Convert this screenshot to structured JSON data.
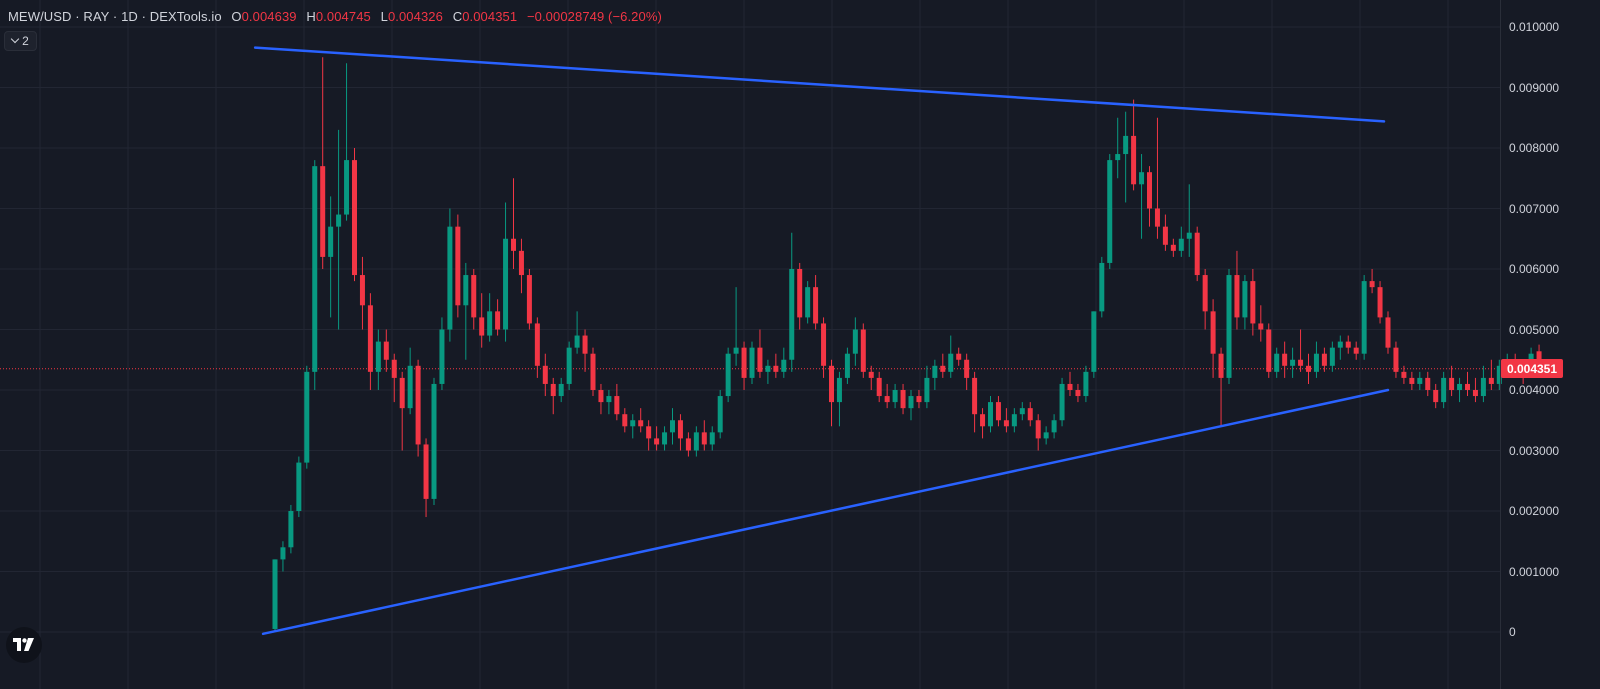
{
  "legend": {
    "symbol": "MEW/USD · RAY · 1D · DEXTools.io",
    "open_label": "O",
    "open": "0.004639",
    "high_label": "H",
    "high": "0.004745",
    "low_label": "L",
    "low": "0.004326",
    "close_label": "C",
    "close": "0.004351",
    "change": "−0.00028749 (−6.20%)"
  },
  "indicators_toggle": {
    "count": "2",
    "icon": "chevron-down-icon"
  },
  "price_axis": {
    "ticks": [
      "0.010000",
      "0.009000",
      "0.008000",
      "0.007000",
      "0.006000",
      "0.005000",
      "0.004000",
      "0.003000",
      "0.002000",
      "0.001000",
      "0"
    ],
    "last_price": "0.004351"
  },
  "logo": "tradingview-logo-icon",
  "colors": {
    "background": "#161a25",
    "grid": "#222633",
    "up": "#089981",
    "down": "#f23645",
    "trendline": "#2962ff",
    "last_price_line": "#f23645"
  },
  "chart_data": {
    "type": "candlestick",
    "title": "MEW/USD · RAY · 1D · DEXTools.io",
    "ylim": [
      -0.0006,
      0.0104
    ],
    "grid": true,
    "y_ticks": [
      0,
      0.001,
      0.002,
      0.003,
      0.004,
      0.005,
      0.006,
      0.007,
      0.008,
      0.009,
      0.01
    ],
    "last_price": 0.004351,
    "candles": [
      [
        5e-05,
        0.0012,
        0.0,
        0.0012
      ],
      [
        0.0012,
        0.0015,
        0.001,
        0.0014
      ],
      [
        0.0014,
        0.0021,
        0.0013,
        0.002
      ],
      [
        0.002,
        0.0029,
        0.0019,
        0.0028
      ],
      [
        0.0028,
        0.0044,
        0.0027,
        0.0043
      ],
      [
        0.0043,
        0.0078,
        0.004,
        0.0077
      ],
      [
        0.0077,
        0.0095,
        0.006,
        0.0062
      ],
      [
        0.0062,
        0.0072,
        0.0052,
        0.0067
      ],
      [
        0.0067,
        0.0083,
        0.005,
        0.0069
      ],
      [
        0.0069,
        0.0094,
        0.0068,
        0.0078
      ],
      [
        0.0078,
        0.008,
        0.0058,
        0.0059
      ],
      [
        0.0059,
        0.0062,
        0.005,
        0.0054
      ],
      [
        0.0054,
        0.0056,
        0.004,
        0.0043
      ],
      [
        0.0043,
        0.005,
        0.004,
        0.0048
      ],
      [
        0.0048,
        0.005,
        0.0043,
        0.0045
      ],
      [
        0.0045,
        0.0046,
        0.0038,
        0.0042
      ],
      [
        0.0042,
        0.0043,
        0.003,
        0.0037
      ],
      [
        0.0037,
        0.0047,
        0.0036,
        0.0044
      ],
      [
        0.0044,
        0.0045,
        0.0029,
        0.0031
      ],
      [
        0.0031,
        0.0032,
        0.0019,
        0.0022
      ],
      [
        0.0022,
        0.0042,
        0.0021,
        0.0041
      ],
      [
        0.0041,
        0.0052,
        0.004,
        0.005
      ],
      [
        0.005,
        0.007,
        0.0048,
        0.0067
      ],
      [
        0.0067,
        0.0069,
        0.0052,
        0.0054
      ],
      [
        0.0054,
        0.0061,
        0.0045,
        0.0059
      ],
      [
        0.0059,
        0.006,
        0.005,
        0.0052
      ],
      [
        0.0052,
        0.0056,
        0.0047,
        0.0049
      ],
      [
        0.0049,
        0.0056,
        0.0048,
        0.0053
      ],
      [
        0.0053,
        0.0055,
        0.0049,
        0.005
      ],
      [
        0.005,
        0.0071,
        0.0048,
        0.0065
      ],
      [
        0.0065,
        0.0075,
        0.006,
        0.0063
      ],
      [
        0.0063,
        0.0065,
        0.0056,
        0.0059
      ],
      [
        0.0059,
        0.006,
        0.005,
        0.0051
      ],
      [
        0.0051,
        0.0052,
        0.0042,
        0.0044
      ],
      [
        0.0044,
        0.0046,
        0.0039,
        0.0041
      ],
      [
        0.0041,
        0.0042,
        0.0036,
        0.0039
      ],
      [
        0.0039,
        0.0042,
        0.0038,
        0.0041
      ],
      [
        0.0041,
        0.0048,
        0.004,
        0.0047
      ],
      [
        0.0047,
        0.0053,
        0.0046,
        0.0049
      ],
      [
        0.0049,
        0.005,
        0.0043,
        0.0046
      ],
      [
        0.0046,
        0.0047,
        0.0039,
        0.004
      ],
      [
        0.004,
        0.0041,
        0.0036,
        0.0038
      ],
      [
        0.0038,
        0.004,
        0.0036,
        0.0039
      ],
      [
        0.0039,
        0.0041,
        0.0035,
        0.0036
      ],
      [
        0.0036,
        0.0037,
        0.0033,
        0.0034
      ],
      [
        0.0034,
        0.0036,
        0.0032,
        0.0035
      ],
      [
        0.0035,
        0.0037,
        0.0033,
        0.0034
      ],
      [
        0.0034,
        0.0035,
        0.003,
        0.0032
      ],
      [
        0.0032,
        0.0034,
        0.003,
        0.0031
      ],
      [
        0.0031,
        0.0034,
        0.003,
        0.0033
      ],
      [
        0.0033,
        0.0037,
        0.0031,
        0.0035
      ],
      [
        0.0035,
        0.0036,
        0.003,
        0.0032
      ],
      [
        0.0032,
        0.0033,
        0.0029,
        0.003
      ],
      [
        0.003,
        0.0034,
        0.0029,
        0.0033
      ],
      [
        0.0033,
        0.0035,
        0.003,
        0.0031
      ],
      [
        0.0031,
        0.0034,
        0.003,
        0.0033
      ],
      [
        0.0033,
        0.004,
        0.0032,
        0.0039
      ],
      [
        0.0039,
        0.0047,
        0.0038,
        0.0046
      ],
      [
        0.0046,
        0.0057,
        0.0044,
        0.0047
      ],
      [
        0.0047,
        0.0048,
        0.004,
        0.0042
      ],
      [
        0.0042,
        0.0048,
        0.0041,
        0.0047
      ],
      [
        0.0047,
        0.005,
        0.0042,
        0.0043
      ],
      [
        0.0043,
        0.0045,
        0.0041,
        0.0044
      ],
      [
        0.0044,
        0.0046,
        0.0042,
        0.0043
      ],
      [
        0.0043,
        0.0047,
        0.0042,
        0.0045
      ],
      [
        0.0045,
        0.0066,
        0.0043,
        0.006
      ],
      [
        0.006,
        0.0061,
        0.005,
        0.0052
      ],
      [
        0.0052,
        0.0058,
        0.0051,
        0.0057
      ],
      [
        0.0057,
        0.0059,
        0.005,
        0.0051
      ],
      [
        0.0051,
        0.0052,
        0.0042,
        0.0044
      ],
      [
        0.0044,
        0.0045,
        0.0034,
        0.0038
      ],
      [
        0.0038,
        0.0043,
        0.0034,
        0.0042
      ],
      [
        0.0042,
        0.0047,
        0.0041,
        0.0046
      ],
      [
        0.0046,
        0.0052,
        0.0044,
        0.005
      ],
      [
        0.005,
        0.0051,
        0.0042,
        0.0043
      ],
      [
        0.0043,
        0.0044,
        0.004,
        0.0042
      ],
      [
        0.0042,
        0.0043,
        0.0038,
        0.0039
      ],
      [
        0.0039,
        0.0041,
        0.0037,
        0.0038
      ],
      [
        0.0038,
        0.0041,
        0.0037,
        0.004
      ],
      [
        0.004,
        0.0041,
        0.0036,
        0.0037
      ],
      [
        0.0037,
        0.004,
        0.0035,
        0.0039
      ],
      [
        0.0039,
        0.004,
        0.0037,
        0.0038
      ],
      [
        0.0038,
        0.0044,
        0.0037,
        0.0042
      ],
      [
        0.0042,
        0.0045,
        0.004,
        0.0044
      ],
      [
        0.0044,
        0.0046,
        0.0042,
        0.0043
      ],
      [
        0.0043,
        0.0049,
        0.0042,
        0.0046
      ],
      [
        0.0046,
        0.0047,
        0.0044,
        0.0045
      ],
      [
        0.0045,
        0.0046,
        0.004,
        0.0042
      ],
      [
        0.0042,
        0.0043,
        0.0033,
        0.0036
      ],
      [
        0.0036,
        0.0037,
        0.0032,
        0.0034
      ],
      [
        0.0034,
        0.0039,
        0.0033,
        0.0038
      ],
      [
        0.0038,
        0.0039,
        0.0034,
        0.0035
      ],
      [
        0.0035,
        0.0037,
        0.0033,
        0.0034
      ],
      [
        0.0034,
        0.0037,
        0.0033,
        0.0036
      ],
      [
        0.0036,
        0.0038,
        0.0035,
        0.0037
      ],
      [
        0.0037,
        0.0038,
        0.0034,
        0.0035
      ],
      [
        0.0035,
        0.0036,
        0.003,
        0.0032
      ],
      [
        0.0032,
        0.0034,
        0.0031,
        0.0033
      ],
      [
        0.0033,
        0.0036,
        0.0032,
        0.0035
      ],
      [
        0.0035,
        0.0042,
        0.0034,
        0.0041
      ],
      [
        0.0041,
        0.0043,
        0.0039,
        0.004
      ],
      [
        0.004,
        0.0041,
        0.0038,
        0.0039
      ],
      [
        0.0039,
        0.0044,
        0.0038,
        0.0043
      ],
      [
        0.0043,
        0.0053,
        0.0042,
        0.0053
      ],
      [
        0.0053,
        0.0062,
        0.0052,
        0.0061
      ],
      [
        0.0061,
        0.0079,
        0.006,
        0.0078
      ],
      [
        0.0078,
        0.0085,
        0.0075,
        0.0079
      ],
      [
        0.0079,
        0.0086,
        0.0071,
        0.0082
      ],
      [
        0.0082,
        0.0088,
        0.0073,
        0.0074
      ],
      [
        0.0074,
        0.0079,
        0.0065,
        0.0076
      ],
      [
        0.0076,
        0.0077,
        0.0067,
        0.007
      ],
      [
        0.007,
        0.0085,
        0.0065,
        0.0067
      ],
      [
        0.0067,
        0.0069,
        0.0063,
        0.0064
      ],
      [
        0.0064,
        0.0065,
        0.0062,
        0.0063
      ],
      [
        0.0063,
        0.0067,
        0.0062,
        0.0065
      ],
      [
        0.0065,
        0.0074,
        0.0062,
        0.0066
      ],
      [
        0.0066,
        0.0067,
        0.0058,
        0.0059
      ],
      [
        0.0059,
        0.006,
        0.005,
        0.0053
      ],
      [
        0.0053,
        0.0055,
        0.0042,
        0.0046
      ],
      [
        0.0046,
        0.0047,
        0.0034,
        0.0042
      ],
      [
        0.0042,
        0.006,
        0.0041,
        0.0059
      ],
      [
        0.0059,
        0.0063,
        0.005,
        0.0052
      ],
      [
        0.0052,
        0.0059,
        0.005,
        0.0058
      ],
      [
        0.0058,
        0.006,
        0.0049,
        0.0051
      ],
      [
        0.0051,
        0.0054,
        0.0048,
        0.005
      ],
      [
        0.005,
        0.0051,
        0.0042,
        0.0043
      ],
      [
        0.0043,
        0.0047,
        0.0042,
        0.0046
      ],
      [
        0.0046,
        0.0048,
        0.0042,
        0.0044
      ],
      [
        0.0044,
        0.0047,
        0.0042,
        0.0045
      ],
      [
        0.0045,
        0.005,
        0.0043,
        0.0044
      ],
      [
        0.0044,
        0.0046,
        0.0041,
        0.0043
      ],
      [
        0.0043,
        0.0048,
        0.0042,
        0.0046
      ],
      [
        0.0046,
        0.0047,
        0.0043,
        0.0044
      ],
      [
        0.0044,
        0.0048,
        0.0043,
        0.0047
      ],
      [
        0.0047,
        0.0049,
        0.0045,
        0.0048
      ],
      [
        0.0048,
        0.0049,
        0.0046,
        0.0047
      ],
      [
        0.0047,
        0.0048,
        0.0045,
        0.0046
      ],
      [
        0.0046,
        0.0059,
        0.0045,
        0.0058
      ],
      [
        0.0058,
        0.006,
        0.0056,
        0.0057
      ],
      [
        0.0057,
        0.0058,
        0.0051,
        0.0052
      ],
      [
        0.0052,
        0.0053,
        0.0046,
        0.0047
      ],
      [
        0.0047,
        0.0048,
        0.0042,
        0.0043
      ],
      [
        0.0043,
        0.0044,
        0.0041,
        0.0042
      ],
      [
        0.0042,
        0.0043,
        0.004,
        0.0041
      ],
      [
        0.0041,
        0.0043,
        0.004,
        0.0042
      ],
      [
        0.0042,
        0.0043,
        0.0039,
        0.004
      ],
      [
        0.004,
        0.0041,
        0.0037,
        0.0038
      ],
      [
        0.0038,
        0.0043,
        0.0037,
        0.0042
      ],
      [
        0.0042,
        0.0044,
        0.0039,
        0.004
      ],
      [
        0.004,
        0.0042,
        0.0038,
        0.0041
      ],
      [
        0.0041,
        0.0043,
        0.0039,
        0.004
      ],
      [
        0.004,
        0.0042,
        0.0038,
        0.0039
      ],
      [
        0.0039,
        0.0044,
        0.0038,
        0.0042
      ],
      [
        0.0042,
        0.0045,
        0.004,
        0.0041
      ],
      [
        0.0041,
        0.0045,
        0.004,
        0.0044
      ],
      [
        0.0044,
        0.0046,
        0.0042,
        0.0045
      ],
      [
        0.0045,
        0.0046,
        0.0043,
        0.0044
      ],
      [
        0.0044,
        0.0045,
        0.0041,
        0.0043
      ],
      [
        0.0043,
        0.0047,
        0.0042,
        0.0046
      ],
      [
        0.00464,
        0.00475,
        0.00433,
        0.00435
      ]
    ],
    "trendlines": [
      {
        "name": "",
        "points": [
          [
            -2.5,
            0.00966
          ],
          [
            139.5,
            0.00844
          ]
        ]
      },
      {
        "name": "",
        "points": [
          [
            -1.5,
            -3e-05
          ],
          [
            140.0,
            0.004
          ]
        ]
      }
    ]
  }
}
